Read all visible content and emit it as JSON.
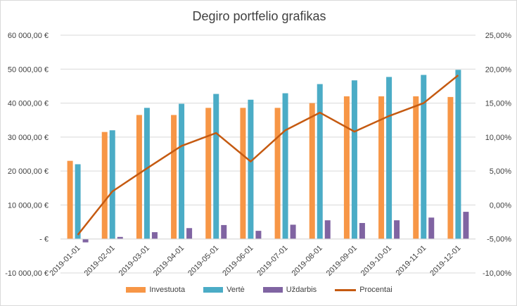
{
  "chart_data": {
    "type": "bar",
    "title": "Degiro portfelio grafikas",
    "categories": [
      "2019-01-01",
      "2019-02-01",
      "2019-03-01",
      "2019-04-01",
      "2019-05-01",
      "2019-06-01",
      "2019-07-01",
      "2019-08-01",
      "2019-09-01",
      "2019-10-01",
      "2019-11-01",
      "2019-12-01"
    ],
    "series": [
      {
        "name": "Investuota",
        "color": "#f79646",
        "values": [
          23000,
          31500,
          36500,
          36500,
          38600,
          38600,
          38600,
          40000,
          42000,
          42000,
          42000,
          41800
        ]
      },
      {
        "name": "Vertė",
        "color": "#4bacc6",
        "values": [
          22000,
          32000,
          38600,
          39800,
          42700,
          41000,
          42900,
          45600,
          46700,
          47700,
          48300,
          49800
        ]
      },
      {
        "name": "Uždarbis",
        "color": "#8064a2",
        "values": [
          -1000,
          600,
          2000,
          3200,
          4100,
          2400,
          4200,
          5500,
          4700,
          5500,
          6300,
          8000
        ]
      }
    ],
    "line_series": {
      "name": "Procentai",
      "color": "#c55a11",
      "values": [
        -4.4,
        2.0,
        5.4,
        8.7,
        10.6,
        6.4,
        11.0,
        13.6,
        10.8,
        13.1,
        15.0,
        19.1
      ]
    },
    "ylim": [
      -10000,
      60000
    ],
    "y2lim": [
      -10,
      25
    ],
    "y_ticks": [
      {
        "value": -10000,
        "label": "-10 000,00 €"
      },
      {
        "value": 0,
        "label": "-     €"
      },
      {
        "value": 10000,
        "label": "10 000,00 €"
      },
      {
        "value": 20000,
        "label": "20 000,00 €"
      },
      {
        "value": 30000,
        "label": "30 000,00 €"
      },
      {
        "value": 40000,
        "label": "40 000,00 €"
      },
      {
        "value": 50000,
        "label": "50 000,00 €"
      },
      {
        "value": 60000,
        "label": "60 000,00 €"
      }
    ],
    "y2_ticks": [
      {
        "value": -10,
        "label": "-10,00%"
      },
      {
        "value": -5,
        "label": "-5,00%"
      },
      {
        "value": 0,
        "label": "0,00%"
      },
      {
        "value": 5,
        "label": "5,00%"
      },
      {
        "value": 10,
        "label": "10,00%"
      },
      {
        "value": 15,
        "label": "15,00%"
      },
      {
        "value": 20,
        "label": "20,00%"
      },
      {
        "value": 25,
        "label": "25,00%"
      }
    ],
    "grid": true,
    "legend_position": "bottom"
  }
}
